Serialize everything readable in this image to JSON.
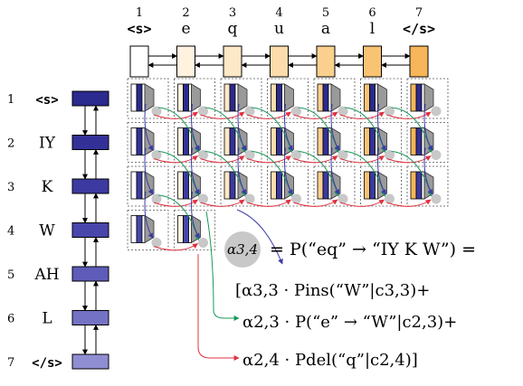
{
  "columns": [
    {
      "index": "1",
      "token": "<s>",
      "color": "#ffffff",
      "mono": true
    },
    {
      "index": "2",
      "token": "e",
      "color": "#fff3df",
      "mono": false
    },
    {
      "index": "3",
      "token": "q",
      "color": "#fde8c8",
      "mono": false
    },
    {
      "index": "4",
      "token": "u",
      "color": "#fcdcad",
      "mono": false
    },
    {
      "index": "5",
      "token": "a",
      "color": "#fbd08f",
      "mono": false
    },
    {
      "index": "6",
      "token": "l",
      "color": "#f9c374",
      "mono": false
    },
    {
      "index": "7",
      "token": "</s>",
      "color": "#f6b659",
      "mono": true
    }
  ],
  "rows": [
    {
      "index": "1",
      "token": "<s>",
      "color": "#2b2a8e",
      "mono": true
    },
    {
      "index": "2",
      "token": "IY",
      "color": "#333197",
      "mono": false
    },
    {
      "index": "3",
      "token": "K",
      "color": "#3c3aa0",
      "mono": false
    },
    {
      "index": "4",
      "token": "W",
      "color": "#4846ab",
      "mono": false
    },
    {
      "index": "5",
      "token": "AH",
      "color": "#5e5cb8",
      "mono": false
    },
    {
      "index": "6",
      "token": "L",
      "color": "#7472c4",
      "mono": false
    },
    {
      "index": "7",
      "token": "</s>",
      "color": "#908ed2",
      "mono": true
    }
  ],
  "colors": {
    "insertion": "#3b3ba8",
    "substitution": "#19985a",
    "deletion": "#e0303e",
    "node": "#c8c8c8"
  },
  "equation": {
    "alpha_node": "α3,4",
    "line0": "= P(“eq” → “IY K W”) =",
    "line1": "[α3,3 · Pins(“W”|c3,3)+",
    "line2": "α2,3 · P(“e” → “W”|c2,3)+",
    "line3": "α2,4 · Pdel(“q”|c2,4)]"
  }
}
